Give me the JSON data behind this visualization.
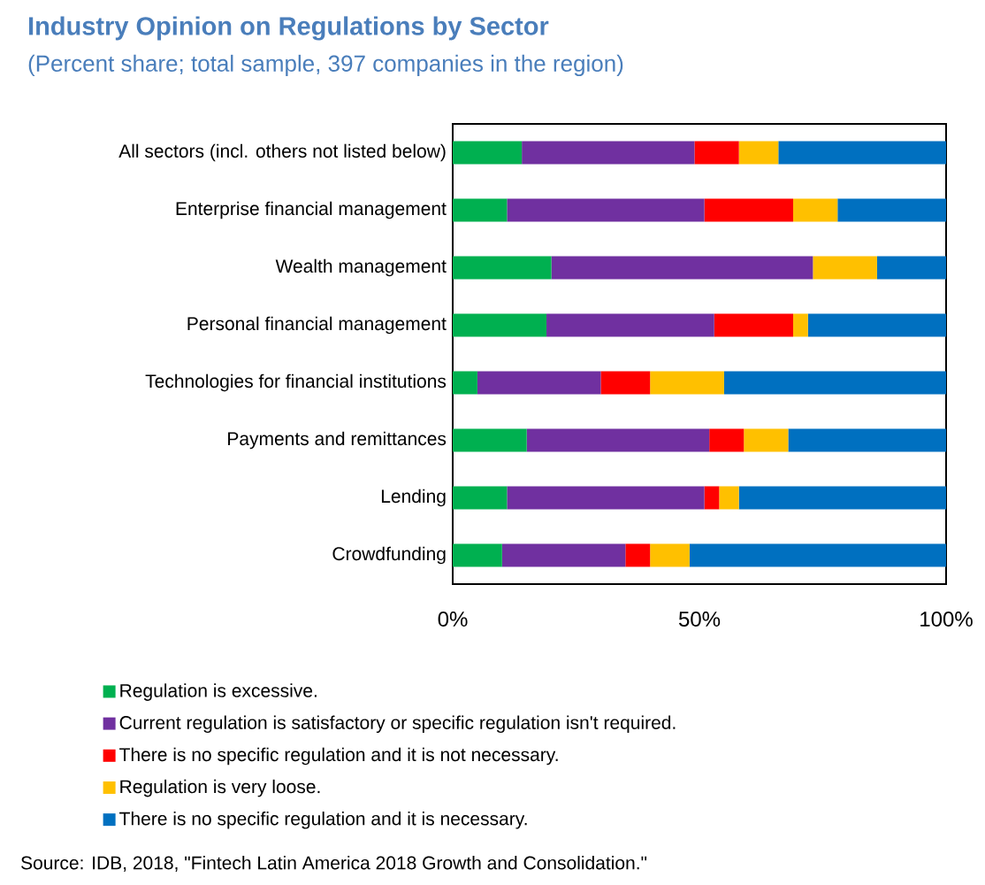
{
  "chart_data": {
    "type": "bar",
    "orientation": "horizontal",
    "stacked": true,
    "title": "Industry Opinion on Regulations by Sector",
    "subtitle": "(Percent share; total sample, 397 companies in the region)",
    "categories": [
      "All sectors (incl. others not listed below)",
      "Enterprise financial management",
      "Wealth management",
      "Personal financial management",
      "Technologies for financial institutions",
      "Payments and remittances",
      "Lending",
      "Crowdfunding"
    ],
    "series": [
      {
        "name": "Regulation is excessive.",
        "color": "#00b050",
        "values": [
          14,
          11,
          20,
          19,
          5,
          15,
          11,
          10
        ]
      },
      {
        "name": "Current regulation is satisfactory or specific regulation isn't required.",
        "color": "#7030a0",
        "values": [
          35,
          40,
          53,
          34,
          25,
          37,
          40,
          25
        ]
      },
      {
        "name": "There is no specific regulation and it is not necessary.",
        "color": "#ff0000",
        "values": [
          9,
          18,
          0,
          16,
          10,
          7,
          3,
          5
        ]
      },
      {
        "name": "Regulation is very loose.",
        "color": "#ffc000",
        "values": [
          8,
          9,
          13,
          3,
          15,
          9,
          4,
          8
        ]
      },
      {
        "name": "There is no specific regulation and it is necessary.",
        "color": "#0070c0",
        "values": [
          34,
          22,
          14,
          28,
          45,
          32,
          42,
          52
        ]
      }
    ],
    "xlim": [
      0,
      100
    ],
    "xticks": [
      {
        "value": 0,
        "label": "0%"
      },
      {
        "value": 50,
        "label": "50%"
      },
      {
        "value": 100,
        "label": "100%"
      }
    ],
    "grid": false,
    "legend": "bottom",
    "annotations": [
      "Source: IDB, 2018, \"Fintech Latin America 2018 Growth and Consolidation.\""
    ]
  }
}
